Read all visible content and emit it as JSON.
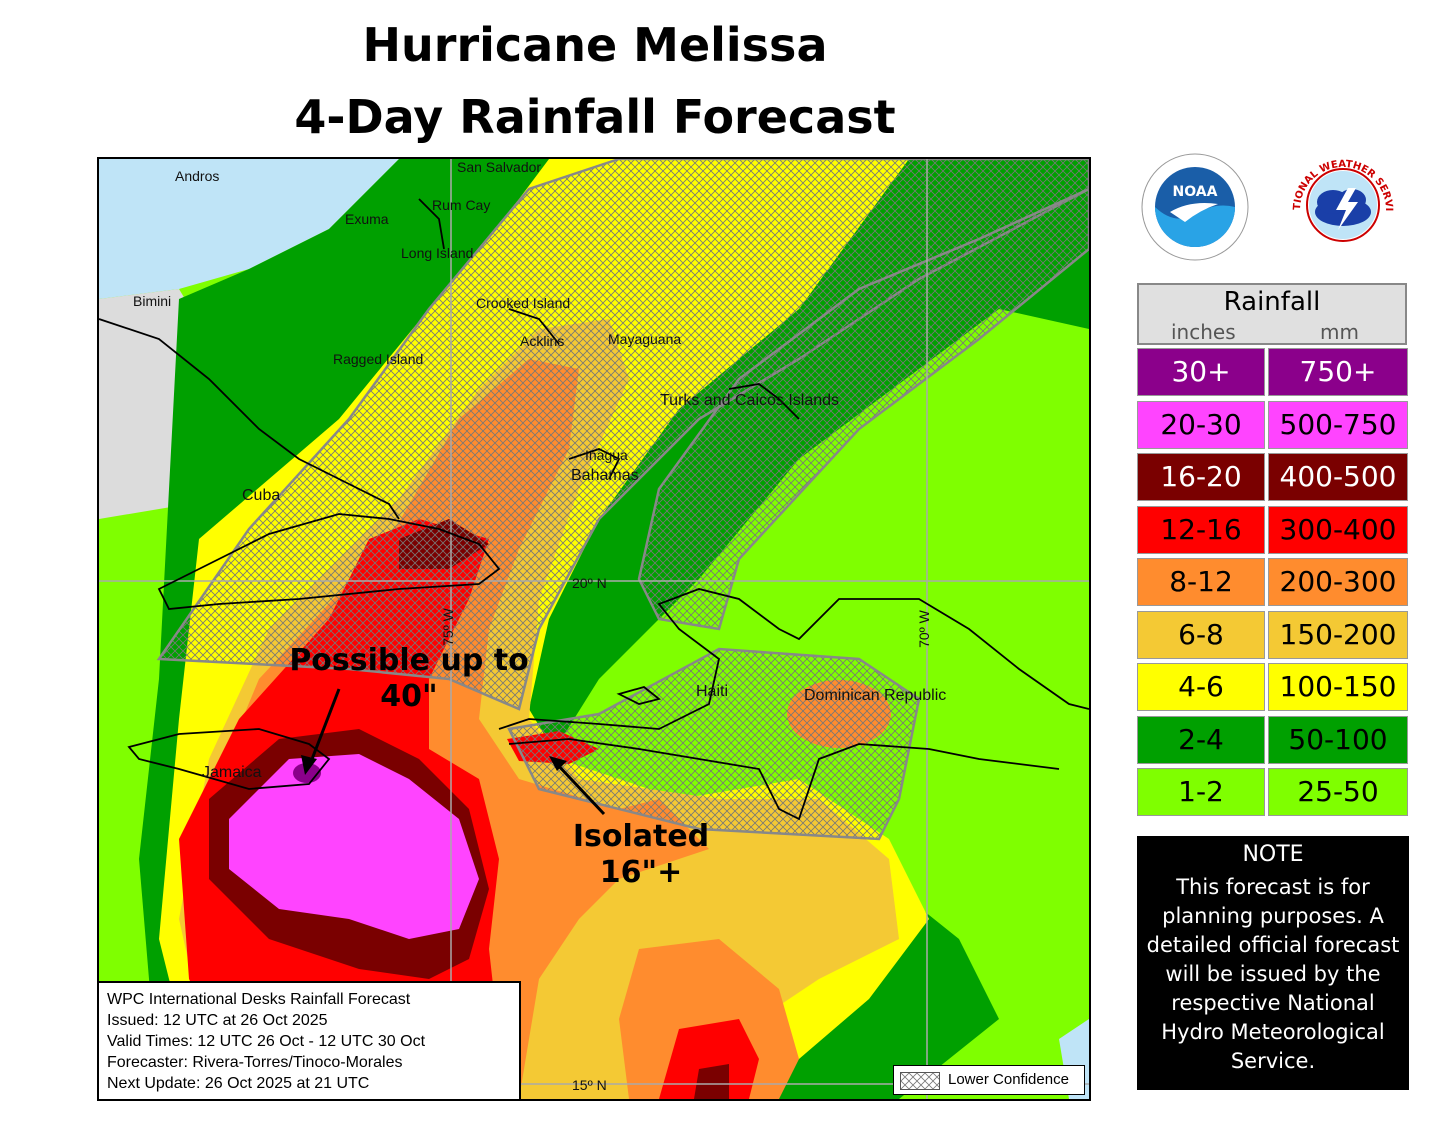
{
  "title_line1": "Hurricane Melissa",
  "title_line2": "4-Day Rainfall Forecast",
  "places": {
    "san_salvador": "San Salvador",
    "andros": "Andros",
    "rum_cay": "Rum Cay",
    "exuma": "Exuma",
    "long_island": "Long Island",
    "bimini": "Bimini",
    "crooked_island": "Crooked Island",
    "acklins": "Acklins",
    "mayaguana": "Mayaguana",
    "ragged_island": "Ragged Island",
    "turks_caicos": "Turks and Caicos Islands",
    "inagua": "Inagua",
    "bahamas": "Bahamas",
    "cuba": "Cuba",
    "haiti": "Haiti",
    "dominican_republic": "Dominican Republic",
    "jamaica": "Jamaica"
  },
  "grid_labels": {
    "lat20": "20º N",
    "lat15": "15º N",
    "lon75": "75º W",
    "lon70": "70º W"
  },
  "annotations": {
    "possible_line1": "Possible up to",
    "possible_line2": "40\"",
    "isolated_line1": "Isolated",
    "isolated_line2": "16\"+"
  },
  "info_box": {
    "line1": "WPC International Desks Rainfall Forecast",
    "line2": "Issued: 12 UTC at 26 Oct 2025",
    "line3": "Valid Times: 12 UTC 26 Oct - 12 UTC 30 Oct",
    "line4": "Forecaster: Rivera-Torres/Tinoco-Morales",
    "line5": "Next Update: 26 Oct 2025 at 21 UTC"
  },
  "lower_confidence_label": "Lower Confidence",
  "logos": {
    "noaa_text": "NOAA",
    "nws_ring_text": "NATIONAL WEATHER SERVICE"
  },
  "legend": {
    "title": "Rainfall",
    "unit_inches": "inches",
    "unit_mm": "mm",
    "rows": [
      {
        "inches": "30+",
        "mm": "750+",
        "color": "#8b008b",
        "text_color": "#ffffff"
      },
      {
        "inches": "20-30",
        "mm": "500-750",
        "color": "#ff44ff",
        "text_color": "#000000"
      },
      {
        "inches": "16-20",
        "mm": "400-500",
        "color": "#7a0000",
        "text_color": "#ffffff"
      },
      {
        "inches": "12-16",
        "mm": "300-400",
        "color": "#ff0000",
        "text_color": "#000000"
      },
      {
        "inches": "8-12",
        "mm": "200-300",
        "color": "#ff8c2e",
        "text_color": "#000000"
      },
      {
        "inches": "6-8",
        "mm": "150-200",
        "color": "#f4c934",
        "text_color": "#000000"
      },
      {
        "inches": "4-6",
        "mm": "100-150",
        "color": "#ffff00",
        "text_color": "#000000"
      },
      {
        "inches": "2-4",
        "mm": "50-100",
        "color": "#00a000",
        "text_color": "#000000"
      },
      {
        "inches": "1-2",
        "mm": "25-50",
        "color": "#7fff00",
        "text_color": "#000000"
      }
    ]
  },
  "note": {
    "heading": "NOTE",
    "body": "This forecast is for planning purposes. A detailed official forecast will be issued by the respective National Hydro Meteorological Service."
  }
}
